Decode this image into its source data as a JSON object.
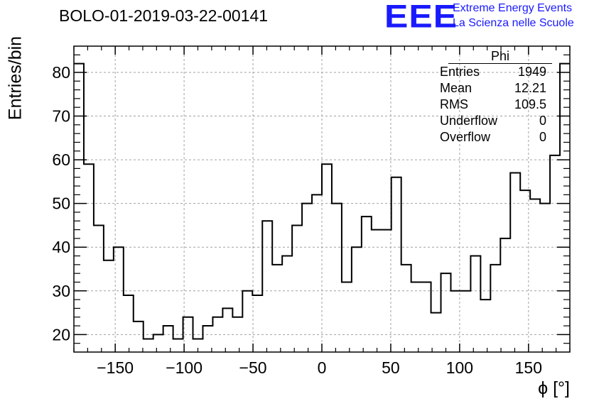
{
  "chart_data": {
    "type": "histogram",
    "title": "BOLO-01-2019-03-22-00141",
    "xlabel": "ϕ [°]",
    "ylabel": "Entries/bin",
    "xlim": [
      -180,
      180
    ],
    "ylim": [
      16,
      86
    ],
    "xticks": [
      "−150",
      "−100",
      "−50",
      "0",
      "50",
      "100",
      "150"
    ],
    "yticks": [
      "20",
      "30",
      "40",
      "50",
      "60",
      "70",
      "80"
    ],
    "grid": true,
    "bin_width": 7.2,
    "values": [
      82,
      59,
      45,
      37,
      40,
      29,
      23,
      19,
      20,
      22,
      19,
      24,
      19,
      22,
      24,
      26,
      24,
      30,
      29,
      46,
      36,
      38,
      45,
      50,
      52,
      59,
      50,
      32,
      40,
      47,
      44,
      44,
      56,
      36,
      32,
      32,
      25,
      34,
      30,
      30,
      38,
      28,
      36,
      42,
      57,
      53,
      51,
      50,
      61,
      82
    ],
    "stats": {
      "name": "Phi",
      "rows": [
        {
          "label": "Entries",
          "value": "1949"
        },
        {
          "label": "Mean",
          "value": "12.21"
        },
        {
          "label": "RMS",
          "value": "109.5"
        },
        {
          "label": "Underflow",
          "value": "0"
        },
        {
          "label": "Overflow",
          "value": "0"
        }
      ]
    }
  },
  "logo": {
    "mark": "EEE",
    "line1": "Extreme Energy Events",
    "line2": "La Scienza nelle Scuole",
    "color": "#1a1aff"
  }
}
